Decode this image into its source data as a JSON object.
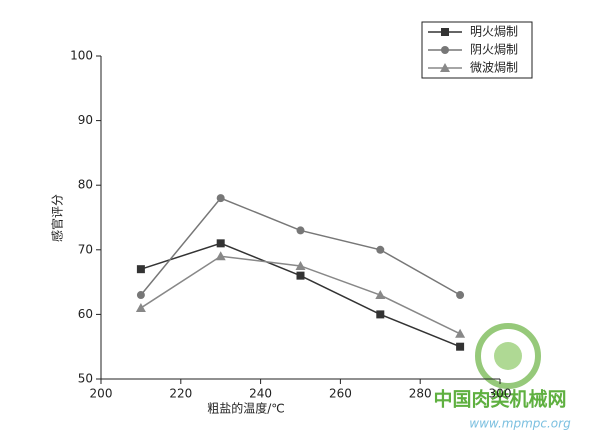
{
  "chart_data": {
    "type": "line",
    "x_label": "粗盐的温度/℃",
    "y_label": "感官评分",
    "x": [
      210,
      230,
      250,
      270,
      290
    ],
    "series": [
      {
        "name": "明火焗制",
        "color": "#333333",
        "marker": "square",
        "values": [
          67,
          71,
          66,
          60,
          55
        ]
      },
      {
        "name": "阴火焗制",
        "color": "#777777",
        "marker": "circle",
        "values": [
          63,
          78,
          73,
          70,
          63
        ]
      },
      {
        "name": "微波焗制",
        "color": "#888888",
        "marker": "triangle",
        "values": [
          61,
          69,
          67.5,
          63,
          57
        ]
      }
    ],
    "xlim": [
      200,
      300
    ],
    "xticks": [
      200,
      220,
      240,
      260,
      280,
      300
    ],
    "ylim": [
      50,
      100
    ],
    "yticks": [
      50,
      60,
      70,
      80,
      90,
      100
    ],
    "grid": false,
    "legend": "top-right"
  },
  "watermark": {
    "title": "中国肉类机械网",
    "url": "www.mpmpc.org"
  }
}
